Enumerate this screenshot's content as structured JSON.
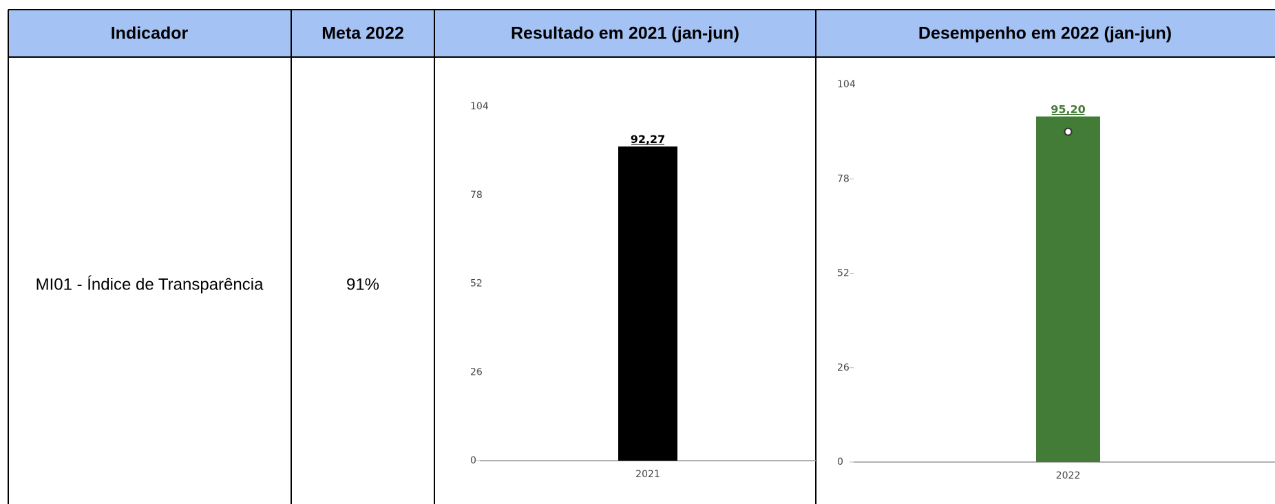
{
  "table": {
    "header": [
      "Indicador",
      "Meta 2022",
      "Resultado em 2021 (jan-jun)",
      "Desempenho em 2022 (jan-jun)"
    ],
    "rows": [
      [
        "MI01 - Índice de Transparência",
        "91%"
      ]
    ]
  },
  "chart_data": [
    {
      "type": "bar",
      "categories": [
        "2021"
      ],
      "values": [
        92.27
      ],
      "value_labels": [
        "92,27"
      ],
      "color": "#000000",
      "value_label_color": "#000000",
      "ylim": [
        0,
        104
      ],
      "yticks": [
        0,
        26,
        52,
        78,
        104
      ]
    },
    {
      "type": "bar",
      "categories": [
        "2022"
      ],
      "values": [
        95.2
      ],
      "value_labels": [
        "95,20"
      ],
      "color": "#437c36",
      "value_label_color": "#437c36",
      "target": 91,
      "ylim": [
        0,
        104
      ],
      "yticks": [
        0,
        26,
        52,
        78,
        104
      ]
    }
  ]
}
